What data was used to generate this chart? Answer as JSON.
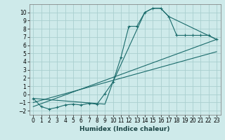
{
  "xlabel": "Humidex (Indice chaleur)",
  "bg_color": "#ceeaea",
  "grid_color": "#aacfcf",
  "line_color": "#1a6b6b",
  "xlim": [
    -0.5,
    23.5
  ],
  "ylim": [
    -2.5,
    11.0
  ],
  "xticks": [
    0,
    1,
    2,
    3,
    4,
    5,
    6,
    7,
    8,
    9,
    10,
    11,
    12,
    13,
    14,
    15,
    16,
    17,
    18,
    19,
    20,
    21,
    22,
    23
  ],
  "yticks": [
    -2,
    -1,
    0,
    1,
    2,
    3,
    4,
    5,
    6,
    7,
    8,
    9,
    10
  ],
  "curve1_x": [
    0,
    1,
    2,
    3,
    4,
    5,
    6,
    7,
    8,
    9,
    10,
    11,
    12,
    13,
    14,
    15,
    16,
    17,
    18,
    19,
    20,
    21,
    22,
    23
  ],
  "curve1_y": [
    -0.5,
    -1.5,
    -1.8,
    -1.6,
    -1.3,
    -1.2,
    -1.3,
    -1.1,
    -1.2,
    0.1,
    1.5,
    4.5,
    8.3,
    8.3,
    10.0,
    10.5,
    10.5,
    9.5,
    7.2,
    7.2,
    7.2,
    7.2,
    7.2,
    6.7
  ],
  "line1_x": [
    0,
    23
  ],
  "line1_y": [
    -1.5,
    6.7
  ],
  "line2_x": [
    0,
    23
  ],
  "line2_y": [
    -1.0,
    5.2
  ],
  "line3_x": [
    0,
    9,
    10,
    14,
    15,
    16,
    17,
    23
  ],
  "line3_y": [
    -0.5,
    -1.2,
    1.5,
    10.0,
    10.5,
    10.5,
    9.5,
    6.7
  ]
}
